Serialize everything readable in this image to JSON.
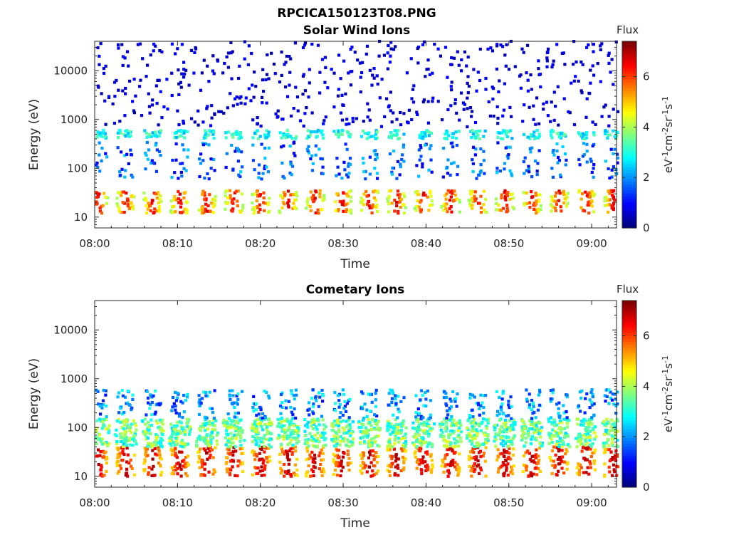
{
  "figure_title": "RPCICA150123T08.PNG",
  "chart_data": [
    {
      "type": "heatmap",
      "title": "Solar Wind Ions",
      "xlabel": "Time",
      "ylabel": "Energy (eV)",
      "y_scale": "log",
      "ylim": [
        6,
        40000
      ],
      "xlim": [
        "08:00",
        "09:03"
      ],
      "x_ticks": [
        "08:00",
        "08:10",
        "08:20",
        "08:30",
        "08:40",
        "08:50",
        "09:00"
      ],
      "y_ticks": [
        "10",
        "100",
        "1000",
        "10000"
      ],
      "colorbar": {
        "title": "Flux",
        "label": "eV-1cm-2sr-1s-1",
        "range": [
          0,
          7.4
        ],
        "ticks": [
          "0",
          "2",
          "4",
          "6"
        ],
        "colormap": "jet"
      },
      "scan_period_minutes": 3.27,
      "features": [
        {
          "energy_range_eV": [
            12,
            35
          ],
          "flux": [
            3.5,
            6.8
          ],
          "description": "dense low energy peak in each scan"
        },
        {
          "energy_range_eV": [
            400,
            600
          ],
          "flux": [
            2.2,
            3.6
          ],
          "description": "narrow band"
        },
        {
          "energy_range_eV": [
            60,
            350
          ],
          "flux": [
            0.7,
            2.5
          ],
          "description": "scattered"
        },
        {
          "energy_range_eV": [
            700,
            40000
          ],
          "flux": [
            0.3,
            1.0
          ],
          "description": "sparse speckle"
        }
      ]
    },
    {
      "type": "heatmap",
      "title": "Cometary Ions",
      "xlabel": "Time",
      "ylabel": "Energy (eV)",
      "y_scale": "log",
      "ylim": [
        6,
        40000
      ],
      "xlim": [
        "08:00",
        "09:03"
      ],
      "x_ticks": [
        "08:00",
        "08:10",
        "08:20",
        "08:30",
        "08:40",
        "08:50",
        "09:00"
      ],
      "y_ticks": [
        "10",
        "100",
        "1000",
        "10000"
      ],
      "colorbar": {
        "title": "Flux",
        "label": "eV-1cm-2sr-1s-1",
        "range": [
          0,
          7.4
        ],
        "ticks": [
          "0",
          "2",
          "4",
          "6"
        ],
        "colormap": "jet"
      },
      "scan_period_minutes": 3.27,
      "features": [
        {
          "energy_range_eV": [
            10,
            40
          ],
          "flux": [
            4.5,
            7.2
          ],
          "description": "strong low energy peak in each scan"
        },
        {
          "energy_range_eV": [
            40,
            150
          ],
          "flux": [
            2.5,
            4.5
          ],
          "description": "broad moderate flux"
        },
        {
          "energy_range_eV": [
            150,
            600
          ],
          "flux": [
            1.0,
            3.0
          ],
          "description": "tails"
        }
      ]
    }
  ]
}
